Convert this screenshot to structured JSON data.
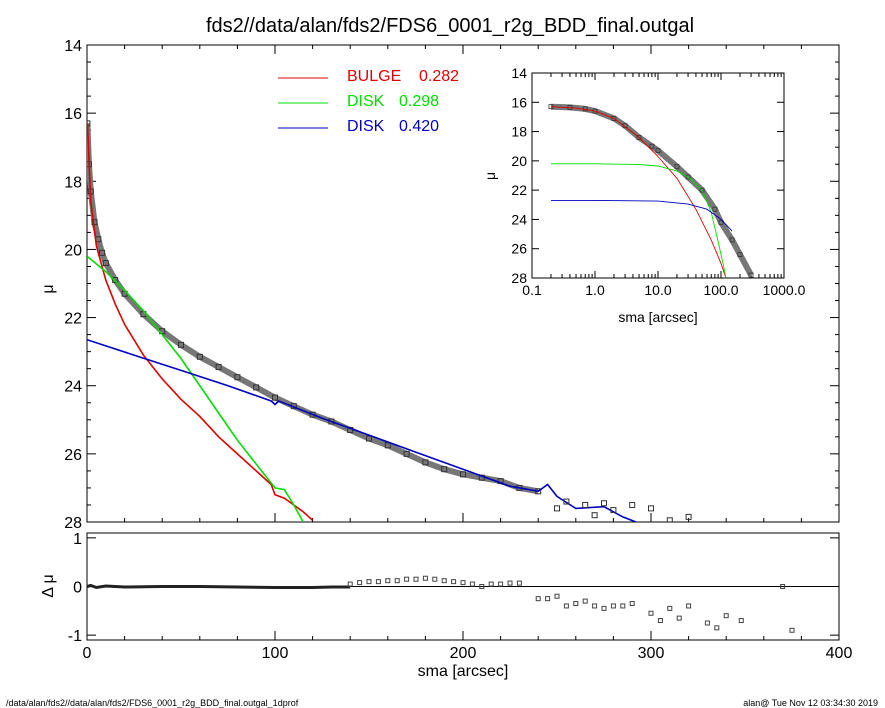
{
  "title": "fds2//data/alan/fds2/FDS6_0001_r2g_BDD_final.outgal",
  "footer": {
    "left": "/data/alan/fds2//data/alan/fds2/FDS6_0001_r2g_BDD_final.outgal_1dprof",
    "right": "alan@  Tue Nov 12 03:34:30 2019"
  },
  "colors": {
    "bulge": "#e00000",
    "disk1": "#00dd00",
    "disk2": "#0000c0",
    "data": "#505050"
  },
  "chart_data": [
    {
      "type": "line",
      "panel": "main",
      "ylabel": "μ",
      "xlim": [
        0,
        400
      ],
      "ylim": [
        28,
        14
      ],
      "y_inverted": true,
      "yticks": [
        "14",
        "16",
        "18",
        "20",
        "22",
        "24",
        "26",
        "28"
      ],
      "legend": [
        {
          "name": "BULGE",
          "value": "0.282"
        },
        {
          "name": "DISK",
          "value": "0.298"
        },
        {
          "name": "DISK",
          "value": "0.420"
        }
      ],
      "series": [
        {
          "key": "bulge",
          "x": [
            0.2,
            2,
            5,
            10,
            15,
            20,
            30,
            40,
            50,
            60,
            70,
            80,
            90,
            98,
            100,
            105,
            110,
            115,
            120
          ],
          "y": [
            16.3,
            18.6,
            19.9,
            20.9,
            21.6,
            22.2,
            23.1,
            23.8,
            24.4,
            24.9,
            25.5,
            26.0,
            26.5,
            26.9,
            27.2,
            27.3,
            27.5,
            27.7,
            27.95
          ]
        },
        {
          "key": "disk1",
          "x": [
            0,
            10,
            20,
            30,
            40,
            50,
            60,
            70,
            80,
            90,
            100,
            105,
            110,
            115
          ],
          "y": [
            20.2,
            20.65,
            21.2,
            21.8,
            22.5,
            23.2,
            24.0,
            24.8,
            25.6,
            26.3,
            27.0,
            27.05,
            27.5,
            28.0
          ]
        },
        {
          "key": "disk2",
          "x": [
            0,
            25,
            50,
            75,
            98,
            100,
            102,
            125,
            150,
            175,
            200,
            225,
            240,
            245,
            250,
            260,
            275,
            285,
            292
          ],
          "y": [
            22.65,
            23.1,
            23.55,
            24.0,
            24.45,
            24.55,
            24.45,
            24.95,
            25.45,
            25.95,
            26.45,
            26.95,
            27.1,
            26.9,
            27.25,
            27.6,
            27.55,
            27.85,
            28.0
          ]
        },
        {
          "key": "data",
          "x": [
            0.2,
            1,
            2,
            4,
            6,
            8,
            10,
            15,
            20,
            30,
            40,
            50,
            60,
            70,
            80,
            90,
            100,
            110,
            120,
            130,
            140,
            150,
            160,
            170,
            180,
            190,
            200,
            210,
            220,
            230,
            240
          ],
          "y": [
            16.3,
            17.5,
            18.3,
            19.2,
            19.7,
            20.1,
            20.4,
            20.9,
            21.3,
            21.9,
            22.4,
            22.8,
            23.15,
            23.45,
            23.75,
            24.05,
            24.35,
            24.6,
            24.85,
            25.05,
            25.3,
            25.55,
            25.75,
            26.0,
            26.25,
            26.45,
            26.6,
            26.7,
            26.8,
            27.0,
            27.1
          ]
        },
        {
          "key": "data_points",
          "x": [
            250,
            255,
            265,
            270,
            275,
            280,
            290,
            300,
            310,
            320
          ],
          "y": [
            27.6,
            27.4,
            27.5,
            27.8,
            27.45,
            27.65,
            27.5,
            27.6,
            27.95,
            27.85
          ]
        }
      ]
    },
    {
      "type": "scatter",
      "panel": "residual",
      "xlabel": "sma [arcsec]",
      "ylabel": "Δ μ",
      "xlim": [
        0,
        400
      ],
      "ylim": [
        -1.1,
        1.1
      ],
      "xticks": [
        "0",
        "100",
        "200",
        "300",
        "400"
      ],
      "yticks": [
        "1",
        "0",
        "-1"
      ],
      "series": [
        {
          "key": "residual_line",
          "x": [
            0,
            2,
            5,
            10,
            20,
            40,
            60,
            80,
            100,
            120,
            130,
            140
          ],
          "y": [
            0.0,
            0.02,
            -0.02,
            0.01,
            -0.01,
            0.0,
            0.0,
            -0.01,
            -0.02,
            -0.02,
            -0.01,
            -0.01
          ]
        },
        {
          "key": "residual_points",
          "x": [
            140,
            145,
            150,
            155,
            160,
            165,
            170,
            175,
            180,
            185,
            190,
            195,
            200,
            205,
            210,
            215,
            220,
            225,
            230,
            240,
            245,
            250,
            255,
            260,
            265,
            270,
            275,
            280,
            285,
            290,
            300,
            305,
            310,
            315,
            320,
            330,
            335,
            340,
            348,
            370,
            375
          ],
          "y": [
            0.05,
            0.08,
            0.1,
            0.1,
            0.12,
            0.12,
            0.15,
            0.15,
            0.17,
            0.15,
            0.12,
            0.1,
            0.08,
            0.05,
            0.0,
            0.05,
            0.05,
            0.07,
            0.07,
            -0.25,
            -0.25,
            -0.2,
            -0.4,
            -0.35,
            -0.3,
            -0.4,
            -0.45,
            -0.4,
            -0.4,
            -0.35,
            -0.55,
            -0.7,
            -0.45,
            -0.65,
            -0.4,
            -0.75,
            -0.85,
            -0.6,
            -0.7,
            0.0,
            -0.9
          ]
        }
      ]
    },
    {
      "type": "line",
      "panel": "inset",
      "xlabel": "sma [arcsec]",
      "ylabel": "μ",
      "xscale": "log",
      "xlim": [
        0.1,
        1000
      ],
      "ylim": [
        28,
        14
      ],
      "y_inverted": true,
      "xticks": [
        "0.1",
        "1.0",
        "10.0",
        "100.0",
        "1000.0"
      ],
      "yticks": [
        "14",
        "16",
        "18",
        "20",
        "22",
        "24",
        "26",
        "28"
      ],
      "series": [
        {
          "key": "data",
          "x": [
            0.2,
            0.4,
            0.7,
            1,
            2,
            3,
            5,
            8,
            10,
            20,
            30,
            50,
            80,
            100,
            150,
            200,
            300
          ],
          "y": [
            16.3,
            16.35,
            16.45,
            16.6,
            17.1,
            17.6,
            18.4,
            19.0,
            19.3,
            20.4,
            21.1,
            22.0,
            23.3,
            24.2,
            25.4,
            26.4,
            27.8
          ]
        },
        {
          "key": "bulge",
          "x": [
            0.2,
            0.5,
            1,
            2,
            5,
            10,
            20,
            40,
            70,
            100,
            120
          ],
          "y": [
            16.3,
            16.4,
            16.6,
            17.1,
            18.4,
            19.7,
            21.2,
            23.3,
            25.4,
            27.0,
            28.0
          ]
        },
        {
          "key": "disk1",
          "x": [
            0.2,
            1,
            5,
            10,
            20,
            30,
            50,
            70,
            90,
            110,
            120
          ],
          "y": [
            20.2,
            20.2,
            20.25,
            20.35,
            20.7,
            21.1,
            22.0,
            23.5,
            25.5,
            27.2,
            28.0
          ]
        },
        {
          "key": "disk2",
          "x": [
            0.2,
            1,
            10,
            30,
            60,
            100,
            150
          ],
          "y": [
            22.7,
            22.7,
            22.75,
            22.95,
            23.3,
            24.0,
            24.8
          ]
        }
      ]
    }
  ]
}
